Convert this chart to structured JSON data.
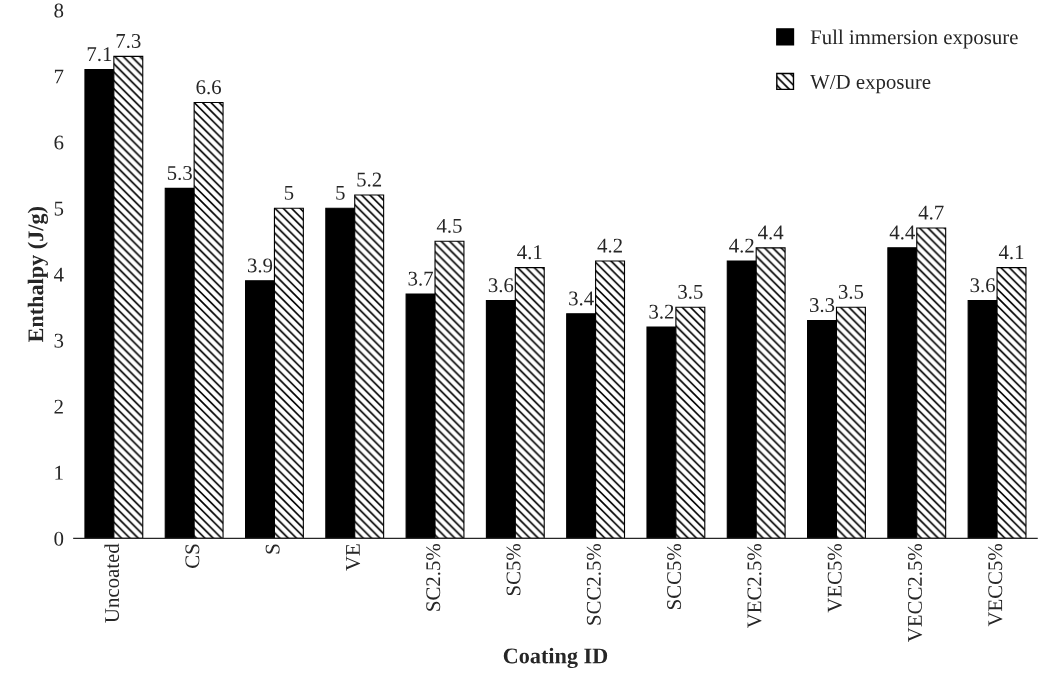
{
  "chart_data": {
    "type": "bar",
    "xlabel": "Coating ID",
    "ylabel": "Enthalpy (J/g)",
    "categories": [
      "Uncoated",
      "CS",
      "S",
      "VE",
      "SC2.5%",
      "SC5%",
      "SCC2.5%",
      "SCC5%",
      "VEC2.5%",
      "VEC5%",
      "VECC2.5%",
      "VECC5%"
    ],
    "series": [
      {
        "name": "Full immersion exposure",
        "color": "#000000",
        "values": [
          7.1,
          5.3,
          3.9,
          5,
          3.7,
          3.6,
          3.4,
          3.2,
          4.2,
          3.3,
          4.4,
          3.6
        ]
      },
      {
        "name": "W/D exposure",
        "color": "#000000",
        "values": [
          7.3,
          6.6,
          5,
          5.2,
          4.5,
          4.1,
          4.2,
          3.5,
          4.4,
          3.5,
          4.7,
          4.1
        ]
      }
    ],
    "ylim": [
      0,
      8
    ],
    "yticks": [
      0,
      1,
      2,
      3,
      4,
      5,
      6,
      7,
      8
    ],
    "data_labels": true,
    "grid": false,
    "legend": "top right"
  }
}
